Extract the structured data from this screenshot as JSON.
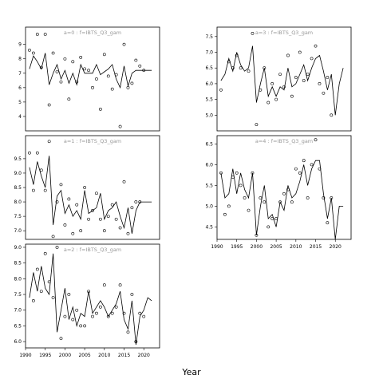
{
  "figure": {
    "xlabel": "Year"
  },
  "chart_data": [
    {
      "type": "line",
      "title": "a=0  :  f=IBTS_Q3_gam",
      "xlim": [
        1990,
        2024
      ],
      "ylim": [
        3.0,
        10.2
      ],
      "yticks": [
        4,
        5,
        6,
        7,
        8,
        9
      ],
      "xticks": [],
      "observed": {
        "x": [
          1991,
          1992,
          1993,
          1994,
          1995,
          1996,
          1997,
          1998,
          1999,
          2000,
          2001,
          2002,
          2003,
          2004,
          2005,
          2006,
          2007,
          2008,
          2009,
          2010,
          2011,
          2012,
          2013,
          2014,
          2015,
          2016,
          2017,
          2018,
          2019,
          2020
        ],
        "y": [
          8.6,
          8.4,
          9.7,
          7.4,
          9.7,
          4.8,
          8.4,
          7.1,
          6.4,
          8.0,
          5.2,
          7.8,
          6.4,
          8.1,
          7.3,
          7.2,
          6.0,
          6.6,
          4.5,
          8.3,
          6.8,
          5.9,
          6.9,
          3.3,
          9.0,
          6.0,
          6.3,
          7.9,
          7.5,
          7.2
        ]
      },
      "fitted": {
        "x": [
          1991,
          1992,
          1993,
          1994,
          1995,
          1996,
          1997,
          1998,
          1999,
          2000,
          2001,
          2002,
          2003,
          2004,
          2005,
          2006,
          2007,
          2008,
          2009,
          2010,
          2011,
          2012,
          2013,
          2014,
          2015,
          2016,
          2017,
          2018,
          2019,
          2020,
          2021,
          2022
        ],
        "y": [
          7.3,
          8.2,
          7.8,
          7.3,
          8.4,
          6.2,
          7.0,
          7.6,
          6.6,
          7.2,
          6.3,
          7.0,
          6.2,
          7.6,
          7.0,
          7.0,
          7.0,
          7.6,
          6.9,
          7.1,
          7.3,
          7.6,
          6.6,
          6.0,
          7.5,
          6.1,
          7.0,
          7.2,
          7.2,
          7.2,
          7.2,
          7.2
        ]
      }
    },
    {
      "type": "line",
      "title": "a=3  :  f=IBTS_Q3_gam",
      "xlim": [
        1990,
        2024
      ],
      "ylim": [
        4.5,
        7.8
      ],
      "yticks": [
        5.0,
        5.5,
        6.0,
        6.5,
        7.0,
        7.5
      ],
      "xticks": [],
      "observed": {
        "x": [
          1991,
          1993,
          1994,
          1995,
          1996,
          1998,
          1999,
          2000,
          2001,
          2002,
          2003,
          2004,
          2005,
          2006,
          2007,
          2008,
          2009,
          2010,
          2011,
          2012,
          2013,
          2014,
          2015,
          2016,
          2017,
          2018,
          2019
        ],
        "y": [
          5.8,
          6.7,
          6.5,
          6.9,
          6.5,
          6.4,
          7.6,
          4.7,
          5.8,
          6.5,
          5.4,
          6.0,
          5.5,
          6.3,
          5.9,
          6.9,
          5.6,
          6.2,
          7.0,
          6.1,
          6.3,
          6.8,
          7.2,
          6.0,
          5.7,
          6.2,
          5.0
        ]
      },
      "fitted": {
        "x": [
          1991,
          1992,
          1993,
          1994,
          1995,
          1996,
          1997,
          1998,
          1999,
          2000,
          2001,
          2002,
          2003,
          2004,
          2005,
          2006,
          2007,
          2008,
          2009,
          2010,
          2011,
          2012,
          2013,
          2014,
          2015,
          2016,
          2017,
          2018,
          2019,
          2020,
          2021,
          2022
        ],
        "y": [
          6.1,
          6.3,
          6.8,
          6.4,
          7.0,
          6.6,
          6.4,
          6.5,
          7.2,
          5.4,
          6.0,
          6.5,
          5.6,
          5.9,
          5.6,
          5.9,
          5.8,
          6.5,
          5.9,
          6.0,
          6.3,
          6.6,
          6.1,
          6.5,
          6.8,
          6.9,
          6.4,
          5.8,
          6.3,
          5.0,
          6.0,
          6.5
        ]
      }
    },
    {
      "type": "line",
      "title": "a=1  :  f=IBTS_Q3_gam",
      "xlim": [
        1990,
        2024
      ],
      "ylim": [
        6.7,
        10.3
      ],
      "yticks": [
        7.0,
        7.5,
        8.0,
        8.5,
        9.0,
        9.5
      ],
      "xticks": [],
      "observed": {
        "x": [
          1991,
          1992,
          1993,
          1994,
          1995,
          1996,
          1997,
          1998,
          1999,
          2000,
          2001,
          2002,
          2003,
          2004,
          2005,
          2006,
          2007,
          2008,
          2009,
          2010,
          2011,
          2012,
          2013,
          2014,
          2015,
          2016,
          2017,
          2018,
          2019
        ],
        "y": [
          9.7,
          8.4,
          9.7,
          9.1,
          8.4,
          10.1,
          6.8,
          8.0,
          8.6,
          7.2,
          8.1,
          6.9,
          7.9,
          7.0,
          8.5,
          7.4,
          7.7,
          8.3,
          7.4,
          7.0,
          7.5,
          7.9,
          7.4,
          7.1,
          8.7,
          6.9,
          7.8,
          8.0,
          8.0
        ]
      },
      "fitted": {
        "x": [
          1991,
          1992,
          1993,
          1994,
          1995,
          1996,
          1997,
          1998,
          1999,
          2000,
          2001,
          2002,
          2003,
          2004,
          2005,
          2006,
          2007,
          2008,
          2009,
          2010,
          2011,
          2012,
          2013,
          2014,
          2015,
          2016,
          2017,
          2018,
          2019,
          2020,
          2021,
          2022
        ],
        "y": [
          9.2,
          8.6,
          9.4,
          8.9,
          8.5,
          9.6,
          7.2,
          8.2,
          8.4,
          7.6,
          7.9,
          7.5,
          7.7,
          7.4,
          8.4,
          7.6,
          7.7,
          7.8,
          8.3,
          7.4,
          7.7,
          7.8,
          8.0,
          7.5,
          7.1,
          7.8,
          6.9,
          7.7,
          8.0,
          8.0,
          8.0,
          8.0
        ]
      }
    },
    {
      "type": "line",
      "title": "a=4  :  f=IBTS_Q3_gam",
      "xlim": [
        1990,
        2024
      ],
      "ylim": [
        4.2,
        6.7
      ],
      "yticks": [
        4.5,
        5.0,
        5.5,
        6.0,
        6.5
      ],
      "xticks": [
        1990,
        1995,
        2000,
        2005,
        2010,
        2015,
        2020
      ],
      "observed": {
        "x": [
          1991,
          1992,
          1993,
          1994,
          1995,
          1996,
          1997,
          1998,
          1999,
          2000,
          2001,
          2002,
          2003,
          2004,
          2005,
          2006,
          2007,
          2008,
          2009,
          2010,
          2011,
          2012,
          2013,
          2014,
          2015,
          2016,
          2017,
          2018,
          2019
        ],
        "y": [
          5.8,
          4.8,
          5.0,
          5.7,
          5.8,
          5.5,
          5.2,
          4.9,
          5.8,
          4.3,
          5.2,
          5.1,
          4.5,
          4.7,
          4.7,
          5.1,
          5.3,
          5.4,
          5.1,
          5.9,
          5.8,
          6.1,
          5.2,
          6.0,
          6.6,
          5.9,
          5.2,
          4.6,
          5.2
        ]
      },
      "fitted": {
        "x": [
          1991,
          1992,
          1993,
          1994,
          1995,
          1996,
          1997,
          1998,
          1999,
          2000,
          2001,
          2002,
          2003,
          2004,
          2005,
          2006,
          2007,
          2008,
          2009,
          2010,
          2011,
          2012,
          2013,
          2014,
          2015,
          2016,
          2017,
          2018,
          2019,
          2020,
          2021,
          2022
        ],
        "y": [
          5.8,
          5.2,
          5.3,
          5.9,
          5.3,
          5.8,
          5.4,
          5.2,
          5.8,
          4.3,
          5.0,
          5.5,
          4.7,
          4.8,
          4.5,
          5.1,
          4.9,
          5.5,
          5.2,
          5.3,
          5.6,
          6.0,
          5.5,
          5.9,
          6.1,
          6.1,
          5.3,
          4.7,
          5.2,
          4.2,
          5.0,
          5.0
        ]
      }
    },
    {
      "type": "line",
      "title": "a=2  :  f=IBTS_Q3_gam",
      "xlim": [
        1990,
        2024
      ],
      "ylim": [
        5.8,
        9.1
      ],
      "yticks": [
        6.0,
        6.5,
        7.0,
        7.5,
        8.0,
        8.5,
        9.0
      ],
      "xticks": [
        1990,
        1995,
        2000,
        2005,
        2010,
        2015,
        2020
      ],
      "observed": {
        "x": [
          1992,
          1993,
          1994,
          1995,
          1996,
          1997,
          1998,
          1999,
          2000,
          2001,
          2002,
          2003,
          2004,
          2005,
          2006,
          2007,
          2008,
          2009,
          2010,
          2011,
          2012,
          2013,
          2014,
          2015,
          2016,
          2017,
          2018,
          2019,
          2020
        ],
        "y": [
          7.3,
          8.3,
          7.6,
          8.8,
          7.9,
          7.4,
          9.0,
          6.1,
          6.8,
          7.5,
          6.7,
          7.0,
          6.5,
          6.5,
          7.6,
          6.8,
          6.9,
          7.1,
          7.8,
          6.8,
          6.9,
          7.1,
          7.8,
          6.9,
          6.3,
          7.5,
          6.0,
          6.9,
          6.8
        ]
      },
      "fitted": {
        "x": [
          1991,
          1992,
          1993,
          1994,
          1995,
          1996,
          1997,
          1998,
          1999,
          2000,
          2001,
          2002,
          2003,
          2004,
          2005,
          2006,
          2007,
          2008,
          2009,
          2010,
          2011,
          2012,
          2013,
          2014,
          2015,
          2016,
          2017,
          2018,
          2019,
          2020,
          2021,
          2022
        ],
        "y": [
          7.4,
          8.2,
          7.6,
          8.4,
          7.7,
          7.5,
          8.8,
          6.3,
          7.0,
          7.7,
          6.7,
          7.1,
          6.5,
          6.9,
          6.8,
          7.6,
          6.9,
          7.1,
          7.3,
          7.1,
          6.8,
          7.0,
          7.2,
          7.6,
          6.7,
          6.4,
          7.3,
          5.9,
          6.8,
          7.0,
          7.4,
          7.3
        ]
      }
    }
  ]
}
